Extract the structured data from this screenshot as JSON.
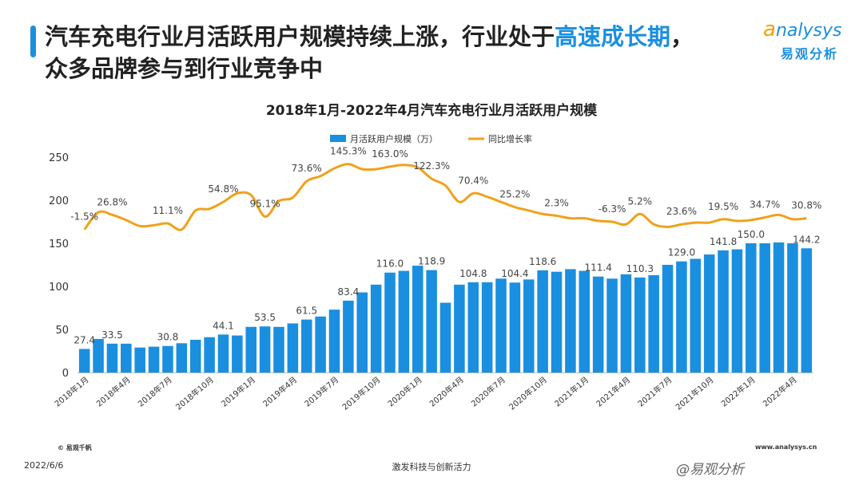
{
  "header": {
    "headline_part1": "汽车充电行业月活跃用户规模持续上涨，行业处于",
    "headline_highlight": "高速成长期",
    "headline_part2": "，",
    "headline_line2": "众多品牌参与到行业竞争中"
  },
  "logo": {
    "word_a": "a",
    "word_rest": "nalysys",
    "cn": "易观分析"
  },
  "colors": {
    "bar": "#1a8fe0",
    "line": "#f0a11b",
    "accent": "#1a8fe0"
  },
  "chart_data": {
    "type": "bar",
    "title": "2018年1月-2022年4月汽车充电行业月活跃用户规模",
    "legend_position": "top-center",
    "grid": false,
    "ylim": [
      0,
      250
    ],
    "yticks": [
      0,
      50,
      100,
      150,
      200,
      250
    ],
    "x_tick_labels": [
      "2018年1月",
      "2018年4月",
      "2018年7月",
      "2018年10月",
      "2019年1月",
      "2019年4月",
      "2019年7月",
      "2019年10月",
      "2020年1月",
      "2020年4月",
      "2020年7月",
      "2020年10月",
      "2021年1月",
      "2021年4月",
      "2021年7月",
      "2021年10月",
      "2022年1月",
      "2022年4月"
    ],
    "x_tick_every": 3,
    "series": [
      {
        "name": "月活跃用户规模（万）",
        "type": "bar",
        "values": [
          27.4,
          39,
          33.5,
          33.5,
          29,
          30,
          30.8,
          34,
          38,
          41,
          44.1,
          43,
          53,
          53.5,
          53,
          57,
          61.5,
          65,
          73,
          83.4,
          93,
          102,
          116,
          118,
          124,
          118.9,
          81,
          102,
          104.8,
          104.8,
          109,
          104.4,
          108,
          118.6,
          117,
          120,
          118,
          111.4,
          109,
          114,
          110.3,
          113,
          125,
          129.0,
          132,
          137,
          141.8,
          143,
          150.0,
          150,
          151,
          150,
          144.2
        ],
        "labels": [
          {
            "i": 0,
            "text": "27.4"
          },
          {
            "i": 2,
            "text": "33.5"
          },
          {
            "i": 6,
            "text": "30.8"
          },
          {
            "i": 10,
            "text": "44.1"
          },
          {
            "i": 13,
            "text": "53.5"
          },
          {
            "i": 16,
            "text": "61.5"
          },
          {
            "i": 19,
            "text": "83.4"
          },
          {
            "i": 22,
            "text": "116.0"
          },
          {
            "i": 25,
            "text": "118.9"
          },
          {
            "i": 28,
            "text": "104.8"
          },
          {
            "i": 31,
            "text": "104.4"
          },
          {
            "i": 33,
            "text": "118.6"
          },
          {
            "i": 37,
            "text": "111.4"
          },
          {
            "i": 40,
            "text": "110.3"
          },
          {
            "i": 43,
            "text": "129.0"
          },
          {
            "i": 46,
            "text": "141.8"
          },
          {
            "i": 48,
            "text": "150.0"
          },
          {
            "i": 52,
            "text": "144.2"
          }
        ]
      },
      {
        "name": "同比增长率",
        "type": "line",
        "y_in_left_axis_units": [
          166,
          186,
          183,
          177,
          170,
          171,
          173,
          166,
          188,
          190,
          198,
          208,
          206,
          181,
          199,
          203,
          222,
          228,
          237,
          242,
          236,
          236,
          239,
          241,
          238,
          225,
          217,
          198,
          208,
          204,
          198,
          192,
          188,
          184,
          182,
          179,
          179,
          176,
          175,
          172,
          184,
          172,
          169,
          172,
          174,
          174,
          178,
          176,
          177,
          180,
          183,
          178,
          179
        ],
        "labels": [
          {
            "i": 0,
            "text": "-1.5%"
          },
          {
            "i": 2,
            "text": "26.8%"
          },
          {
            "i": 6,
            "text": "11.1%"
          },
          {
            "i": 10,
            "text": "54.8%"
          },
          {
            "i": 13,
            "text": "95.1%"
          },
          {
            "i": 16,
            "text": "73.6%"
          },
          {
            "i": 19,
            "text": "145.3%"
          },
          {
            "i": 22,
            "text": "163.0%"
          },
          {
            "i": 25,
            "text": "122.3%"
          },
          {
            "i": 28,
            "text": "70.4%"
          },
          {
            "i": 31,
            "text": "25.2%"
          },
          {
            "i": 34,
            "text": "2.3%"
          },
          {
            "i": 38,
            "text": "-6.3%"
          },
          {
            "i": 40,
            "text": "5.2%"
          },
          {
            "i": 43,
            "text": "23.6%"
          },
          {
            "i": 46,
            "text": "19.5%"
          },
          {
            "i": 49,
            "text": "34.7%"
          },
          {
            "i": 52,
            "text": "30.8%"
          }
        ]
      }
    ]
  },
  "footer": {
    "source": "© 易观千帆",
    "url": "www.analysys.cn",
    "date": "2022/6/6",
    "slogan": "激发科技与创新活力",
    "brand": "@易观分析"
  }
}
